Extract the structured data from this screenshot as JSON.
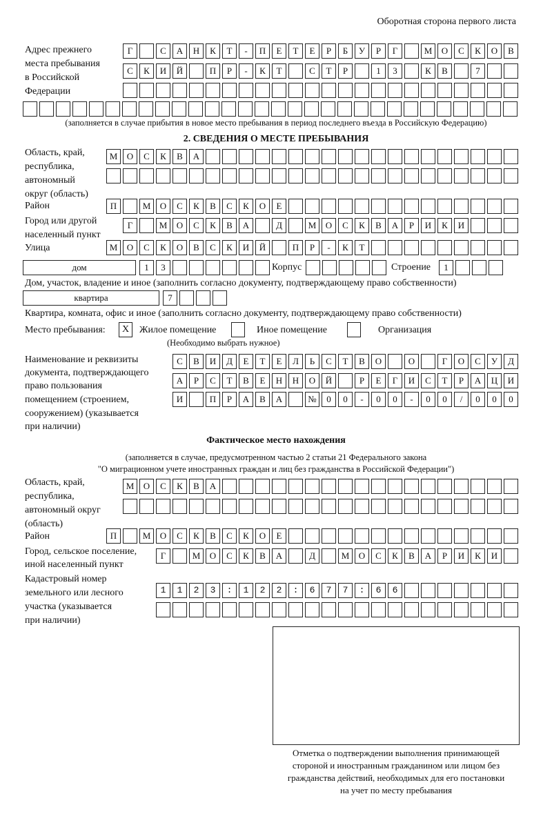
{
  "page_header": "Оборотная сторона первого листа",
  "previous_address": {
    "label": [
      "Адрес прежнего",
      "места пребывания",
      "в Российской",
      "Федерации"
    ],
    "rows": [
      "Г САНКТ-ПЕТЕРБУРГ МОСКОВ",
      "СКИЙ ПР-КТ СТР 13 КВ 7  ",
      "                        ",
      "                              "
    ],
    "note": "(заполняется в случае прибытия в новое место пребывания в период последнего въезда в Российскую Федерацию)"
  },
  "section2": {
    "title": "2. СВЕДЕНИЯ О МЕСТЕ ПРЕБЫВАНИЯ",
    "region_label": [
      "Область, край,",
      "республика,",
      "автономный",
      "округ (область)"
    ],
    "region_rows": [
      "МОСКВА                   ",
      "                         "
    ],
    "district_label": "Район",
    "district_row": "П МОСКВСКОЕ              ",
    "city_label": [
      "Город или другой",
      "населенный пункт"
    ],
    "city_row": "Г МОСКВА Д МОСКВАРИКИ   ",
    "street_label": "Улица",
    "street_row": "МОСКОВСКИЙ ПР-КТ         ",
    "house_type": "дом",
    "house_row": "13      ",
    "building_label": "Корпус",
    "building_row": "     ",
    "structure_label": "Строение",
    "structure_row": "1   ",
    "house_note": "Дом, участок, владение и иное (заполнить согласно документу, подтверждающему право собственности)",
    "flat_type": "квартира",
    "flat_row": "7   ",
    "flat_note": "Квартира, комната, офис и иное (заполнить согласно документу, подтверждающему право собственности)",
    "stay_place_label": "Место пребывания:",
    "options": [
      {
        "label": "Жилое помещение",
        "mark": "X"
      },
      {
        "label": "Иное помещение",
        "mark": ""
      },
      {
        "label": "Организация",
        "mark": ""
      }
    ],
    "options_note": "(Необходимо выбрать нужное)",
    "document_label": [
      "Наименование и реквизиты",
      "документа, подтверждающего",
      "право пользования",
      "помещением (строением,",
      "сооружением) (указывается",
      "при наличии)"
    ],
    "document_rows": [
      "СВИДЕТЕЛЬСТВО О ГОСУД",
      "АРСТВЕННОЙ РЕГИСТРАЦИ",
      "И ПРАВА №00-00-00/000"
    ]
  },
  "actual_location": {
    "title": "Фактическое место нахождения",
    "note1": "(заполняется в случае, предусмотренном частью 2 статьи 21 Федерального закона",
    "note2": "\"О миграционном учете иностранных граждан и лиц без гражданства в Российской Федерации\")",
    "region_label": [
      "Область, край,",
      "республика,",
      "автономный округ",
      "(область)"
    ],
    "region_rows": [
      "МОСКВА                  ",
      "                        "
    ],
    "district_label": "Район",
    "district_row": "П МОСКВСКОЕ              ",
    "city_label": [
      "Город, сельское поселение,",
      "иной населенный пункт"
    ],
    "city_row": "Г МОСКВА Д МОСКВАРИКИ ",
    "cadastral_label": [
      "Кадастровый номер",
      "земельного или лесного",
      "участка (указывается",
      "при наличии)"
    ],
    "cadastral_rows": [
      "1123:122:677:66       ",
      "                      "
    ]
  },
  "stamp_caption": [
    "Отметка о подтверждении выполнения принимающей",
    "стороной и иностранным гражданином или лицом без",
    "гражданства действий, необходимых для его постановки",
    "на учет по месту пребывания"
  ]
}
